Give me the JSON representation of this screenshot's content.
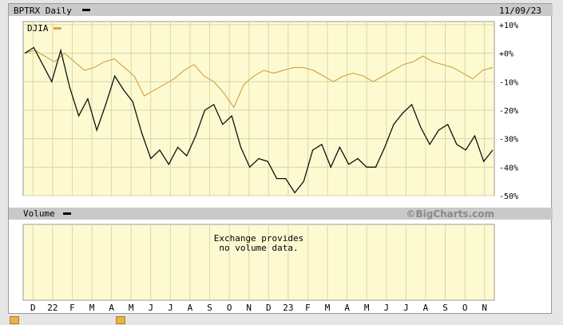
{
  "header": {
    "ticker_label": "BPTRX Daily",
    "date": "11/09/23"
  },
  "legend": {
    "comparison_label": "DJIA"
  },
  "volume": {
    "label": "Volume",
    "message_line1": "Exchange provides",
    "message_line2": "no volume data."
  },
  "brand": "©BigCharts.com",
  "colors": {
    "fund_line": "#111111",
    "djia_line": "#d6a548",
    "plot_background": "#fdfad2",
    "header_bar": "#c9c9c9"
  },
  "chart_data": {
    "type": "line",
    "title": "BPTRX Daily",
    "xlabel": "",
    "ylabel": "",
    "ylim": [
      -50,
      10
    ],
    "y_ticks": [
      "+10%",
      "+0%",
      "-10%",
      "-20%",
      "-30%",
      "-40%",
      "-50%"
    ],
    "x_tick_labels": [
      "D",
      "22",
      "F",
      "M",
      "A",
      "M",
      "J",
      "J",
      "A",
      "S",
      "O",
      "N",
      "D",
      "23",
      "F",
      "M",
      "A",
      "M",
      "J",
      "J",
      "A",
      "S",
      "O",
      "N"
    ],
    "grid": true,
    "legend_position": "top-left",
    "series": [
      {
        "name": "BPTRX",
        "x": [
          "Dec 2021",
          "Dec 2021",
          "Jan 2022",
          "Jan 2022",
          "Jan 2022",
          "Feb 2022",
          "Feb 2022",
          "Mar 2022",
          "Mar 2022",
          "Apr 2022",
          "Apr 2022",
          "Apr 2022",
          "May 2022",
          "May 2022",
          "Jun 2022",
          "Jun 2022",
          "Jun 2022",
          "Jul 2022",
          "Jul 2022",
          "Aug 2022",
          "Aug 2022",
          "Aug 2022",
          "Sep 2022",
          "Sep 2022",
          "Oct 2022",
          "Oct 2022",
          "Nov 2022",
          "Nov 2022",
          "Dec 2022",
          "Dec 2022",
          "Jan 2023",
          "Jan 2023",
          "Feb 2023",
          "Feb 2023",
          "Mar 2023",
          "Mar 2023",
          "Apr 2023",
          "Apr 2023",
          "May 2023",
          "May 2023",
          "Jun 2023",
          "Jun 2023",
          "Jul 2023",
          "Jul 2023",
          "Aug 2023",
          "Aug 2023",
          "Sep 2023",
          "Sep 2023",
          "Oct 2023",
          "Oct 2023",
          "Oct 2023",
          "Nov 2023",
          "Nov 2023"
        ],
        "values": [
          0,
          2,
          -4,
          -10,
          1,
          -12,
          -22,
          -16,
          -27,
          -18,
          -8,
          -13,
          -17,
          -28,
          -37,
          -34,
          -39,
          -33,
          -36,
          -29,
          -20,
          -18,
          -25,
          -22,
          -33,
          -40,
          -37,
          -38,
          -44,
          -44,
          -49,
          -45,
          -34,
          -32,
          -40,
          -33,
          -39,
          -37,
          -40,
          -40,
          -33,
          -25,
          -21,
          -18,
          -26,
          -32,
          -27,
          -25,
          -32,
          -34,
          -29,
          -38,
          -34
        ]
      },
      {
        "name": "DJIA",
        "x": [
          "Dec 2021",
          "Dec 2021",
          "Jan 2022",
          "Jan 2022",
          "Feb 2022",
          "Feb 2022",
          "Mar 2022",
          "Mar 2022",
          "Apr 2022",
          "Apr 2022",
          "May 2022",
          "May 2022",
          "Jun 2022",
          "Jun 2022",
          "Jul 2022",
          "Jul 2022",
          "Aug 2022",
          "Aug 2022",
          "Sep 2022",
          "Sep 2022",
          "Oct 2022",
          "Oct 2022",
          "Nov 2022",
          "Nov 2022",
          "Dec 2022",
          "Dec 2022",
          "Jan 2023",
          "Jan 2023",
          "Feb 2023",
          "Feb 2023",
          "Mar 2023",
          "Mar 2023",
          "Apr 2023",
          "Apr 2023",
          "May 2023",
          "May 2023",
          "Jun 2023",
          "Jun 2023",
          "Jul 2023",
          "Jul 2023",
          "Aug 2023",
          "Aug 2023",
          "Sep 2023",
          "Sep 2023",
          "Oct 2023",
          "Oct 2023",
          "Nov 2023",
          "Nov 2023"
        ],
        "values": [
          0,
          1,
          -1,
          -3,
          0,
          -3,
          -6,
          -5,
          -3,
          -2,
          -5,
          -8,
          -15,
          -13,
          -11,
          -9,
          -6,
          -4,
          -8,
          -10,
          -14,
          -19,
          -11,
          -8,
          -6,
          -7,
          -6,
          -5,
          -5,
          -6,
          -8,
          -10,
          -8,
          -7,
          -8,
          -10,
          -8,
          -6,
          -4,
          -3,
          -1,
          -3,
          -4,
          -5,
          -7,
          -9,
          -6,
          -5
        ]
      }
    ]
  }
}
